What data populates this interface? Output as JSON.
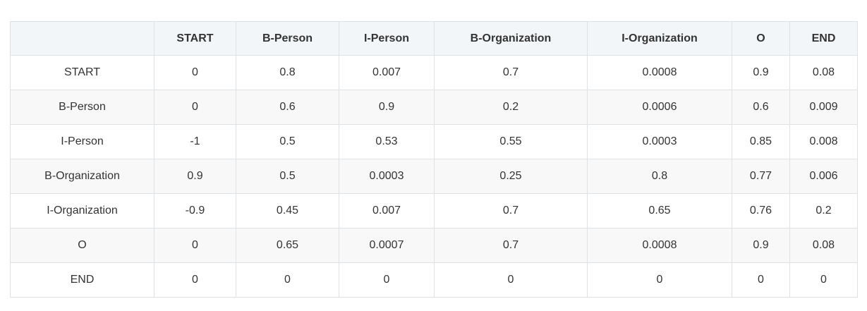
{
  "table": {
    "header": [
      "",
      "START",
      "B-Person",
      "I-Person",
      "B-Organization",
      "I-Organization",
      "O",
      "END"
    ],
    "rows": [
      [
        "START",
        0,
        0.8,
        0.007,
        0.7,
        0.0008,
        0.9,
        0.08
      ],
      [
        "B-Person",
        0,
        0.6,
        0.9,
        0.2,
        0.0006,
        0.6,
        0.009
      ],
      [
        "I-Person",
        -1,
        0.5,
        0.53,
        0.55,
        0.0003,
        0.85,
        0.008
      ],
      [
        "B-Organization",
        0.9,
        0.5,
        0.0003,
        0.25,
        0.8,
        0.77,
        0.006
      ],
      [
        "I-Organization",
        -0.9,
        0.45,
        0.007,
        0.7,
        0.65,
        0.76,
        0.2
      ],
      [
        "O",
        0,
        0.65,
        0.0007,
        0.7,
        0.0008,
        0.9,
        0.08
      ],
      [
        "END",
        0,
        0,
        0,
        0,
        0,
        0,
        0
      ]
    ]
  }
}
